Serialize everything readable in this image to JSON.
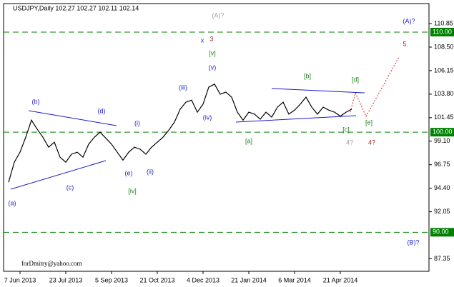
{
  "chart_data": {
    "type": "line",
    "title": "USDJPY,Daily  102.27 102.27 102.11 102.14",
    "watermark": "forDmitry@yahoo.com",
    "color": "#000000",
    "categories": [
      null,
      null,
      "7 Jun 2013",
      null,
      null,
      null,
      null,
      null,
      null,
      null,
      "23 Jul 2013",
      null,
      null,
      null,
      null,
      null,
      null,
      null,
      "5 Sep 2013",
      null,
      null,
      null,
      null,
      null,
      null,
      null,
      "21 Oct 2013",
      null,
      null,
      null,
      null,
      null,
      null,
      null,
      "4 Dec 2013",
      null,
      null,
      null,
      null,
      null,
      null,
      null,
      "21 Jan 2014",
      null,
      null,
      null,
      null,
      null,
      null,
      null,
      "6 Mar 2014",
      null,
      null,
      null,
      null,
      null,
      null,
      null,
      "21 Apr 2014",
      null,
      null
    ],
    "values": [
      95.0,
      97.0,
      98.0,
      99.5,
      101.2,
      100.3,
      99.5,
      98.5,
      99.0,
      97.5,
      97.0,
      97.8,
      98.0,
      97.5,
      98.8,
      99.5,
      100.0,
      99.4,
      98.8,
      98.0,
      97.2,
      98.0,
      98.5,
      98.3,
      97.8,
      98.5,
      99.0,
      99.5,
      100.2,
      101.0,
      102.3,
      103.0,
      103.2,
      102.0,
      102.8,
      104.5,
      104.8,
      103.8,
      104.0,
      103.5,
      102.0,
      101.2,
      102.0,
      101.8,
      101.3,
      102.0,
      101.5,
      102.5,
      103.0,
      101.8,
      102.2,
      102.8,
      103.5,
      102.5,
      101.8,
      102.5,
      102.2,
      102.0,
      101.6,
      102.0,
      102.3
    ],
    "ylim": [
      86.1,
      112.85
    ],
    "yticks": [
      110.85,
      {
        "value": 108.5,
        "label": "108.50"
      },
      106.15,
      {
        "value": 103.8,
        "label": "103.80"
      },
      101.45,
      {
        "value": 99.1,
        "label": "99.10"
      },
      96.75,
      {
        "value": 94.4,
        "label": "94.40"
      },
      92.05,
      87.35
    ],
    "levels": [
      {
        "value": 110,
        "label": "110.00"
      },
      {
        "value": 100,
        "label": "100.00"
      },
      {
        "value": 90,
        "label": "90.00"
      }
    ],
    "level_color": "#008000",
    "annotations": [
      {
        "text": "(A)?",
        "color": "#a0a0a0"
      },
      {
        "text": "(A)?",
        "color": "#1a1acc"
      },
      {
        "text": "x",
        "color": "#1a1acc"
      },
      {
        "text": "3",
        "color": "#a52a2a"
      },
      {
        "text": "[v]",
        "color": "#208020"
      },
      {
        "text": "(v)",
        "color": "#1a1acc"
      },
      {
        "text": "(iii)",
        "color": "#1a1acc"
      },
      {
        "text": "(iv)",
        "color": "#1a1acc"
      },
      {
        "text": "(b)",
        "color": "#1a1acc"
      },
      {
        "text": "(d)",
        "color": "#1a1acc"
      },
      {
        "text": "(i)",
        "color": "#1a1acc"
      },
      {
        "text": "(e)",
        "color": "#1a1acc"
      },
      {
        "text": "(ii)",
        "color": "#1a1acc"
      },
      {
        "text": "[iv]",
        "color": "#208020"
      },
      {
        "text": "(c)",
        "color": "#1a1acc"
      },
      {
        "text": "(a)",
        "color": "#1a1acc"
      },
      {
        "text": "[a]",
        "color": "#208020"
      },
      {
        "text": "[b]",
        "color": "#208020"
      },
      {
        "text": "[d]",
        "color": "#208020"
      },
      {
        "text": "[c]",
        "color": "#208020"
      },
      {
        "text": "[e]",
        "color": "#208020"
      },
      {
        "text": "4?",
        "color": "#a0a0a0"
      },
      {
        "text": "4?",
        "color": "#a52a2a"
      },
      {
        "text": "5",
        "color": "#a52a2a"
      },
      {
        "text": "(B)?",
        "color": "#1a1acc"
      }
    ]
  }
}
